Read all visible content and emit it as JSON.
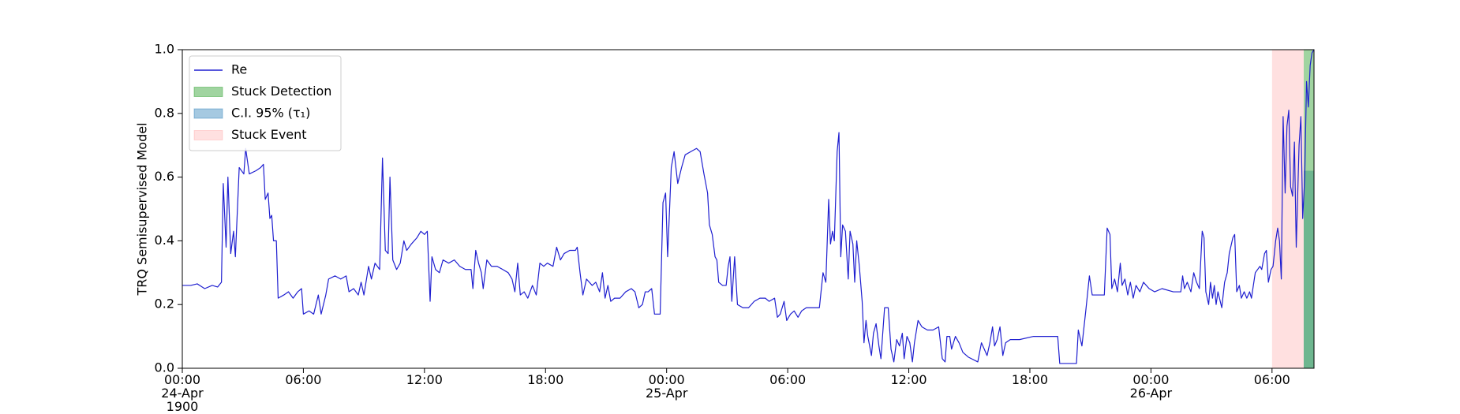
{
  "chart_data": {
    "type": "line",
    "y_label": "TRQ Semisupervised Model",
    "x": [
      0,
      0.42,
      0.74,
      1.11,
      1.48,
      1.75,
      1.94,
      2.03,
      2.17,
      2.26,
      2.4,
      2.54,
      2.63,
      2.82,
      3.05,
      3.14,
      3.32,
      3.65,
      3.88,
      4.02,
      4.11,
      4.25,
      4.34,
      4.43,
      4.52,
      4.66,
      4.75,
      5.03,
      5.26,
      5.49,
      5.72,
      5.91,
      6.0,
      6.28,
      6.51,
      6.74,
      6.88,
      7.11,
      7.25,
      7.57,
      7.85,
      8.12,
      8.26,
      8.49,
      8.72,
      8.86,
      9.0,
      9.23,
      9.37,
      9.55,
      9.78,
      9.92,
      10.06,
      10.2,
      10.29,
      10.43,
      10.62,
      10.8,
      10.98,
      11.12,
      11.35,
      11.63,
      11.82,
      12.0,
      12.14,
      12.28,
      12.37,
      12.55,
      12.74,
      12.92,
      13.2,
      13.48,
      13.75,
      14.03,
      14.31,
      14.4,
      14.54,
      14.68,
      14.82,
      14.91,
      15.09,
      15.32,
      15.6,
      15.88,
      16.15,
      16.34,
      16.48,
      16.62,
      16.75,
      16.94,
      17.12,
      17.35,
      17.54,
      17.72,
      17.91,
      18.09,
      18.37,
      18.55,
      18.74,
      18.92,
      19.2,
      19.48,
      19.57,
      19.71,
      19.85,
      20.03,
      20.31,
      20.49,
      20.68,
      20.82,
      20.95,
      21.09,
      21.23,
      21.42,
      21.69,
      21.97,
      22.25,
      22.43,
      22.62,
      22.8,
      22.94,
      23.08,
      23.26,
      23.4,
      23.54,
      23.68,
      23.82,
      23.95,
      24.05,
      24.23,
      24.37,
      24.55,
      24.74,
      24.92,
      25.2,
      25.48,
      25.66,
      25.85,
      26.03,
      26.12,
      26.26,
      26.4,
      26.49,
      26.58,
      26.77,
      26.95,
      27.05,
      27.14,
      27.23,
      27.37,
      27.51,
      27.78,
      28.06,
      28.34,
      28.62,
      28.89,
      29.08,
      29.35,
      29.49,
      29.63,
      29.82,
      29.95,
      30.14,
      30.32,
      30.51,
      30.69,
      30.92,
      31.2,
      31.57,
      31.75,
      31.89,
      32.03,
      32.12,
      32.22,
      32.31,
      32.45,
      32.54,
      32.63,
      32.72,
      32.86,
      33.0,
      33.09,
      33.23,
      33.32,
      33.42,
      33.55,
      33.69,
      33.78,
      33.88,
      33.97,
      34.15,
      34.25,
      34.38,
      34.52,
      34.62,
      34.8,
      34.98,
      35.12,
      35.26,
      35.4,
      35.54,
      35.68,
      35.77,
      35.91,
      36.05,
      36.18,
      36.28,
      36.46,
      36.65,
      36.92,
      37.2,
      37.48,
      37.66,
      37.8,
      37.89,
      38.03,
      38.12,
      38.31,
      38.49,
      38.68,
      38.95,
      39.42,
      39.6,
      39.74,
      39.88,
      40.02,
      40.15,
      40.25,
      40.38,
      40.52,
      40.66,
      40.8,
      41.03,
      41.49,
      42.18,
      43.11,
      43.38,
      43.48,
      44.03,
      44.31,
      44.4,
      44.58,
      44.77,
      44.95,
      45.09,
      45.42,
      45.69,
      45.83,
      45.97,
      46.06,
      46.2,
      46.34,
      46.48,
      46.57,
      46.71,
      46.85,
      46.98,
      47.12,
      47.26,
      47.45,
      47.63,
      47.91,
      48.18,
      48.55,
      49.11,
      49.48,
      49.57,
      49.66,
      49.8,
      49.98,
      50.12,
      50.26,
      50.4,
      50.54,
      50.63,
      50.72,
      50.86,
      50.95,
      51.05,
      51.14,
      51.23,
      51.32,
      51.51,
      51.65,
      51.78,
      51.88,
      52.06,
      52.15,
      52.25,
      52.38,
      52.48,
      52.62,
      52.75,
      52.89,
      52.98,
      53.17,
      53.4,
      53.49,
      53.63,
      53.72,
      53.82,
      53.95,
      54.05,
      54.18,
      54.28,
      54.37,
      54.46,
      54.55,
      54.65,
      54.74,
      54.83,
      54.92,
      55.02,
      55.11,
      55.2,
      55.34,
      55.43,
      55.52,
      55.62,
      55.71,
      55.8,
      55.89,
      55.98,
      56.08
    ],
    "series": [
      {
        "name": "Re",
        "color": "#1f1fd0",
        "values": [
          0.26,
          0.26,
          0.265,
          0.25,
          0.26,
          0.255,
          0.27,
          0.58,
          0.38,
          0.6,
          0.36,
          0.43,
          0.35,
          0.63,
          0.61,
          0.69,
          0.61,
          0.62,
          0.63,
          0.64,
          0.53,
          0.55,
          0.47,
          0.48,
          0.4,
          0.4,
          0.22,
          0.23,
          0.24,
          0.22,
          0.24,
          0.25,
          0.17,
          0.18,
          0.17,
          0.23,
          0.17,
          0.23,
          0.28,
          0.29,
          0.28,
          0.29,
          0.24,
          0.25,
          0.23,
          0.27,
          0.23,
          0.32,
          0.28,
          0.33,
          0.31,
          0.66,
          0.37,
          0.36,
          0.6,
          0.34,
          0.31,
          0.33,
          0.4,
          0.37,
          0.39,
          0.41,
          0.43,
          0.42,
          0.43,
          0.21,
          0.35,
          0.31,
          0.3,
          0.34,
          0.33,
          0.34,
          0.32,
          0.31,
          0.31,
          0.25,
          0.37,
          0.33,
          0.3,
          0.25,
          0.34,
          0.32,
          0.32,
          0.31,
          0.3,
          0.28,
          0.24,
          0.33,
          0.23,
          0.24,
          0.22,
          0.26,
          0.23,
          0.33,
          0.32,
          0.33,
          0.32,
          0.38,
          0.34,
          0.36,
          0.37,
          0.37,
          0.38,
          0.3,
          0.23,
          0.28,
          0.26,
          0.27,
          0.24,
          0.3,
          0.22,
          0.26,
          0.21,
          0.22,
          0.22,
          0.24,
          0.25,
          0.24,
          0.19,
          0.2,
          0.24,
          0.24,
          0.25,
          0.17,
          0.17,
          0.17,
          0.52,
          0.55,
          0.35,
          0.63,
          0.68,
          0.58,
          0.63,
          0.67,
          0.68,
          0.69,
          0.68,
          0.61,
          0.55,
          0.45,
          0.42,
          0.35,
          0.34,
          0.27,
          0.26,
          0.26,
          0.32,
          0.35,
          0.21,
          0.35,
          0.2,
          0.19,
          0.19,
          0.21,
          0.22,
          0.22,
          0.21,
          0.22,
          0.16,
          0.17,
          0.21,
          0.15,
          0.17,
          0.18,
          0.16,
          0.18,
          0.19,
          0.19,
          0.19,
          0.3,
          0.27,
          0.53,
          0.39,
          0.43,
          0.4,
          0.68,
          0.74,
          0.35,
          0.45,
          0.43,
          0.28,
          0.43,
          0.39,
          0.27,
          0.4,
          0.32,
          0.21,
          0.08,
          0.15,
          0.1,
          0.04,
          0.11,
          0.14,
          0.07,
          0.03,
          0.19,
          0.19,
          0.06,
          0.02,
          0.09,
          0.07,
          0.11,
          0.03,
          0.1,
          0.08,
          0.02,
          0.08,
          0.15,
          0.13,
          0.12,
          0.12,
          0.13,
          0.03,
          0.02,
          0.1,
          0.1,
          0.06,
          0.1,
          0.08,
          0.05,
          0.035,
          0.02,
          0.08,
          0.06,
          0.04,
          0.08,
          0.13,
          0.07,
          0.09,
          0.13,
          0.04,
          0.08,
          0.09,
          0.09,
          0.1,
          0.1,
          0.1,
          0.015,
          0.015,
          0.015,
          0.12,
          0.07,
          0.18,
          0.29,
          0.23,
          0.23,
          0.23,
          0.44,
          0.42,
          0.25,
          0.28,
          0.24,
          0.33,
          0.26,
          0.28,
          0.23,
          0.27,
          0.22,
          0.26,
          0.24,
          0.27,
          0.25,
          0.24,
          0.25,
          0.24,
          0.24,
          0.29,
          0.25,
          0.27,
          0.24,
          0.3,
          0.27,
          0.25,
          0.43,
          0.41,
          0.24,
          0.2,
          0.27,
          0.22,
          0.26,
          0.2,
          0.24,
          0.19,
          0.27,
          0.3,
          0.36,
          0.41,
          0.42,
          0.24,
          0.26,
          0.22,
          0.24,
          0.22,
          0.24,
          0.22,
          0.3,
          0.32,
          0.31,
          0.36,
          0.37,
          0.27,
          0.31,
          0.32,
          0.4,
          0.44,
          0.4,
          0.28,
          0.79,
          0.55,
          0.76,
          0.81,
          0.57,
          0.54,
          0.71,
          0.38,
          0.7,
          0.79,
          0.47,
          0.6,
          0.9,
          0.82,
          0.95,
          0.99,
          1.0
        ]
      }
    ],
    "regions": [
      {
        "name": "Stuck Detection",
        "color": "#2ca02c",
        "alpha": 0.45,
        "xlim": [
          55.57,
          56.08
        ],
        "ylim": [
          0,
          1
        ]
      },
      {
        "name": "C.I. 95% (τ₁)",
        "color": "#1f77b4",
        "alpha": 0.4,
        "xlim": [
          55.57,
          56.08
        ],
        "ylim": [
          0,
          0.62
        ]
      },
      {
        "name": "Stuck Event",
        "color": "#ff0000",
        "alpha": 0.12,
        "xlim": [
          54.0,
          55.57
        ],
        "ylim": [
          0,
          1
        ]
      }
    ],
    "xlim": [
      0,
      56.08
    ],
    "xticks": [
      {
        "value": 0,
        "label": "00:00\n24-Apr\n1900"
      },
      {
        "value": 6,
        "label": "06:00"
      },
      {
        "value": 12,
        "label": "12:00"
      },
      {
        "value": 18,
        "label": "18:00"
      },
      {
        "value": 24,
        "label": "00:00\n25-Apr"
      },
      {
        "value": 30,
        "label": "06:00"
      },
      {
        "value": 36,
        "label": "12:00"
      },
      {
        "value": 42,
        "label": "18:00"
      },
      {
        "value": 48,
        "label": "00:00\n26-Apr"
      },
      {
        "value": 54,
        "label": "06:00"
      }
    ],
    "ylim": [
      0,
      1
    ],
    "yticks": [
      {
        "value": 0,
        "label": "0.0"
      },
      {
        "value": 0.2,
        "label": "0.2"
      },
      {
        "value": 0.4,
        "label": "0.4"
      },
      {
        "value": 0.6,
        "label": "0.6"
      },
      {
        "value": 0.8,
        "label": "0.8"
      },
      {
        "value": 1,
        "label": "1.0"
      }
    ],
    "grid": false,
    "legend": "upper left"
  }
}
